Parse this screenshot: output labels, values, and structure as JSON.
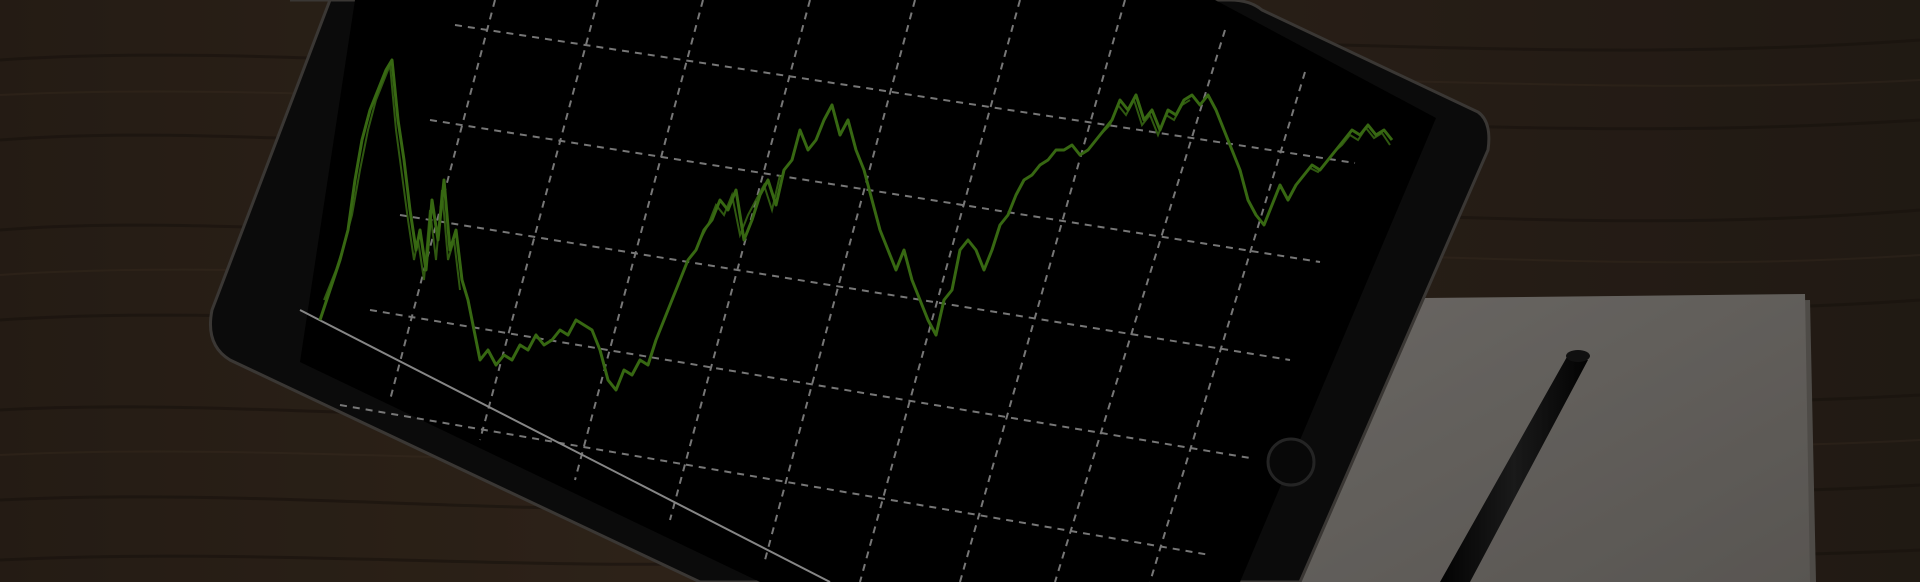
{
  "scene": {
    "description_free": true,
    "colors": {
      "table_dark": "#2b2119",
      "table_mid": "#3d2f22",
      "table_light": "#4a3929",
      "grain": "#1f1812",
      "tablet_frame": "#131313",
      "tablet_edge": "#5b5752",
      "screen": "#000000",
      "grid": "#d9d9d9",
      "chart_green": "#5aa81e",
      "paper": "#a29d97",
      "paper_shadow": "#7d7872",
      "pen": "#111111",
      "overlay": "#000000"
    },
    "overlay_opacity": 0.38
  }
}
